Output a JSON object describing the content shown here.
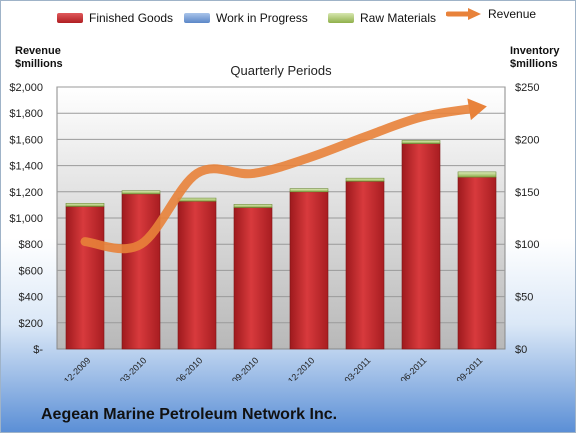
{
  "chart_data": {
    "type": "bar",
    "title": "Quarterly Periods",
    "y_left_label": "Revenue $millions",
    "y_right_label": "Inventory $millions",
    "categories": [
      "FQ 12-2009",
      "FQ 03-2010",
      "FQ 06-2010",
      "FQ 09-2010",
      "FQ 12-2010",
      "FQ 03-2011",
      "FQ 06-2011",
      "FQ 09-2011"
    ],
    "y_left_ticks": [
      "$-",
      "$200",
      "$400",
      "$600",
      "$800",
      "$1,000",
      "$1,200",
      "$1,400",
      "$1,600",
      "$1,800",
      "$2,000"
    ],
    "y_right_ticks": [
      "$0",
      "$50",
      "$100",
      "$150",
      "$200",
      "$250"
    ],
    "ylim_left": [
      0,
      2000
    ],
    "ylim_right": [
      0,
      250
    ],
    "series": [
      {
        "name": "Finished Goods",
        "axis": "right",
        "type": "stacked-bar",
        "color": "#c0282c",
        "values": [
          136,
          148,
          141,
          135,
          150,
          160,
          196,
          164
        ]
      },
      {
        "name": "Work in Progress",
        "axis": "right",
        "type": "stacked-bar",
        "color": "#5b87c7",
        "values": [
          0,
          0,
          0,
          0,
          0,
          0,
          0,
          0
        ]
      },
      {
        "name": "Raw Materials",
        "axis": "right",
        "type": "stacked-bar",
        "color": "#9bbb59",
        "values": [
          3,
          3,
          3,
          3,
          3,
          3,
          3,
          5
        ]
      },
      {
        "name": "Revenue",
        "axis": "left",
        "type": "line",
        "color": "#e8823a",
        "values": [
          820,
          800,
          1340,
          1340,
          1460,
          1620,
          1770,
          1840
        ]
      }
    ],
    "grid": true,
    "legend_position": "top"
  },
  "footer": {
    "company": "Aegean Marine Petroleum Network Inc."
  }
}
